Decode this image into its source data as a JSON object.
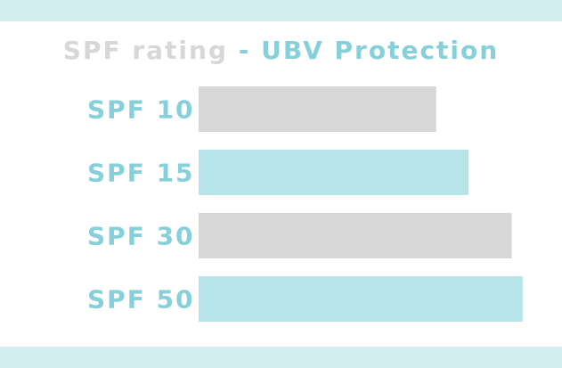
{
  "title": {
    "part1": "SPF rating",
    "separator": "-",
    "part2": "UBV Protection"
  },
  "colors": {
    "band": "#d2eef0",
    "gray_bar": "#d7d7d7",
    "teal_bar": "#b6e4e9",
    "label": "#86d0da"
  },
  "chart_data": {
    "type": "bar",
    "orientation": "horizontal",
    "categories": [
      "SPF 10",
      "SPF 15",
      "SPF 30",
      "SPF 50"
    ],
    "values": [
      90,
      93,
      97,
      98
    ],
    "bar_colors": [
      "#d7d7d7",
      "#b6e4e9",
      "#d7d7d7",
      "#b6e4e9"
    ],
    "xlim": [
      68,
      100
    ],
    "grid": false,
    "legend": "none"
  }
}
